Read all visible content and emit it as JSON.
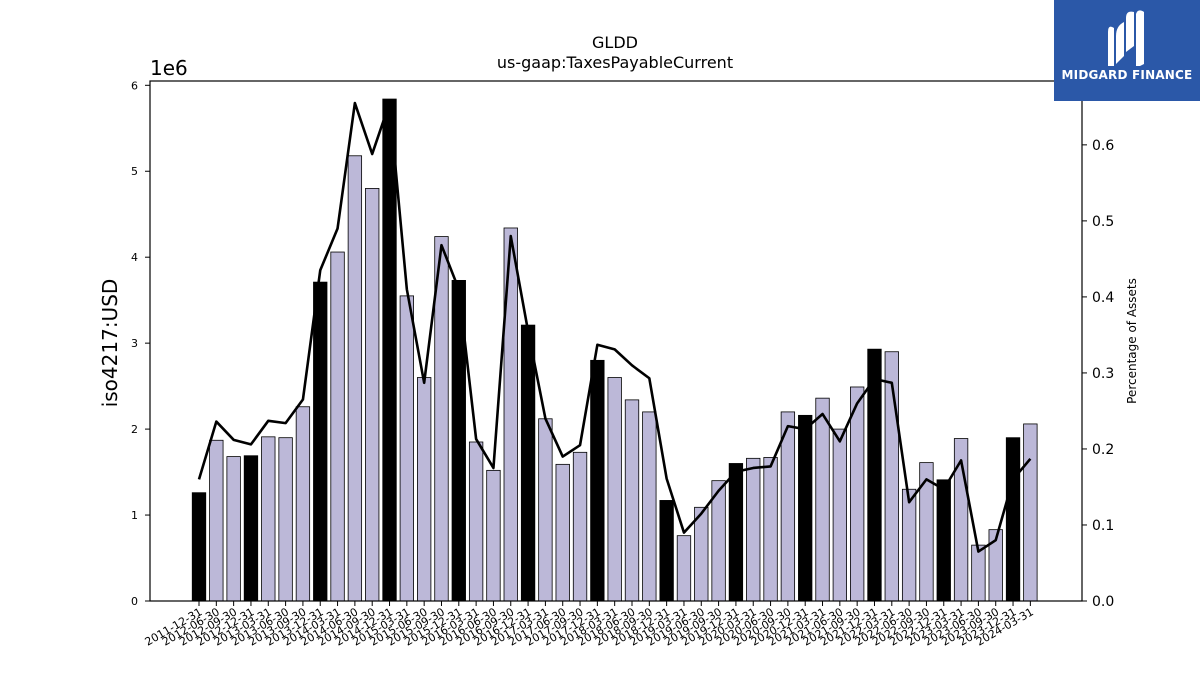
{
  "brand": {
    "name": "MIDGARD FINANCE"
  },
  "chart_data": {
    "type": "bar",
    "title": "GLDD",
    "subtitle": "us-gaap:TaxesPayableCurrent",
    "ylabel": "iso4217:USD",
    "y_offset_label": "1e6",
    "y2label": "Percentage of Assets",
    "ylim": [
      0,
      6050000
    ],
    "y2lim": [
      0.0,
      0.684
    ],
    "yticks": [
      0,
      1000000,
      2000000,
      3000000,
      4000000,
      5000000,
      6000000
    ],
    "ytick_labels": [
      "0",
      "1",
      "2",
      "3",
      "4",
      "5",
      "6"
    ],
    "y2ticks": [
      0.0,
      0.1,
      0.2,
      0.3,
      0.4,
      0.5,
      0.6
    ],
    "y2tick_labels": [
      "0.0",
      "0.1",
      "0.2",
      "0.3",
      "0.4",
      "0.5",
      "0.6"
    ],
    "grid": false,
    "colors": {
      "annual_bar": "#000000",
      "quarter_bar": "#bcb8d8",
      "bar_edge": "#000000",
      "line": "#000000"
    },
    "categories": [
      "2011-12-31",
      "2012-06-30",
      "2012-09-30",
      "2012-12-31",
      "2013-03-31",
      "2013-06-30",
      "2013-09-30",
      "2013-12-31",
      "2014-03-31",
      "2014-06-30",
      "2014-09-30",
      "2014-12-31",
      "2015-03-31",
      "2015-06-30",
      "2015-09-30",
      "2015-12-31",
      "2016-03-31",
      "2016-06-30",
      "2016-09-30",
      "2016-12-31",
      "2017-03-31",
      "2017-06-30",
      "2017-09-30",
      "2017-12-31",
      "2018-03-31",
      "2018-06-30",
      "2018-09-30",
      "2018-12-31",
      "2019-03-31",
      "2019-06-30",
      "2019-09-30",
      "2019-12-31",
      "2020-03-31",
      "2020-06-30",
      "2020-09-30",
      "2020-12-31",
      "2021-03-31",
      "2021-06-30",
      "2021-09-30",
      "2021-12-31",
      "2022-03-31",
      "2022-06-30",
      "2022-09-30",
      "2022-12-31",
      "2023-03-31",
      "2023-06-30",
      "2023-09-30",
      "2023-12-31",
      "2024-03-31"
    ],
    "annual": [
      true,
      false,
      false,
      true,
      false,
      false,
      false,
      true,
      false,
      false,
      false,
      true,
      false,
      false,
      false,
      true,
      false,
      false,
      false,
      true,
      false,
      false,
      false,
      true,
      false,
      false,
      false,
      true,
      false,
      false,
      false,
      true,
      false,
      false,
      false,
      true,
      false,
      false,
      false,
      true,
      false,
      false,
      false,
      true,
      false,
      false,
      false,
      true,
      false
    ],
    "series": [
      {
        "name": "iso4217:USD",
        "axis": "left",
        "kind": "bar",
        "values": [
          1260000,
          1870000,
          1680000,
          1690000,
          1910000,
          1900000,
          2260000,
          3710000,
          4060000,
          5180000,
          4800000,
          5840000,
          3550000,
          2600000,
          4240000,
          3730000,
          1850000,
          1520000,
          4340000,
          3210000,
          2120000,
          1590000,
          1730000,
          2800000,
          2600000,
          2340000,
          2200000,
          1170000,
          760000,
          1090000,
          1400000,
          1600000,
          1660000,
          1670000,
          2200000,
          2160000,
          2360000,
          2000000,
          2490000,
          2930000,
          2900000,
          1300000,
          1610000,
          1410000,
          1890000,
          650000,
          830000,
          1900000,
          2060000
        ]
      },
      {
        "name": "Percentage of Assets",
        "axis": "right",
        "kind": "line",
        "values": [
          0.16,
          0.236,
          0.212,
          0.206,
          0.237,
          0.234,
          0.265,
          0.435,
          0.49,
          0.655,
          0.588,
          0.655,
          0.41,
          0.287,
          0.468,
          0.41,
          0.213,
          0.175,
          0.48,
          0.355,
          0.24,
          0.19,
          0.205,
          0.337,
          0.331,
          0.31,
          0.293,
          0.161,
          0.09,
          0.115,
          0.145,
          0.17,
          0.175,
          0.177,
          0.23,
          0.226,
          0.246,
          0.21,
          0.26,
          0.292,
          0.287,
          0.13,
          0.16,
          0.147,
          0.185,
          0.065,
          0.08,
          0.16,
          0.187
        ]
      }
    ]
  }
}
